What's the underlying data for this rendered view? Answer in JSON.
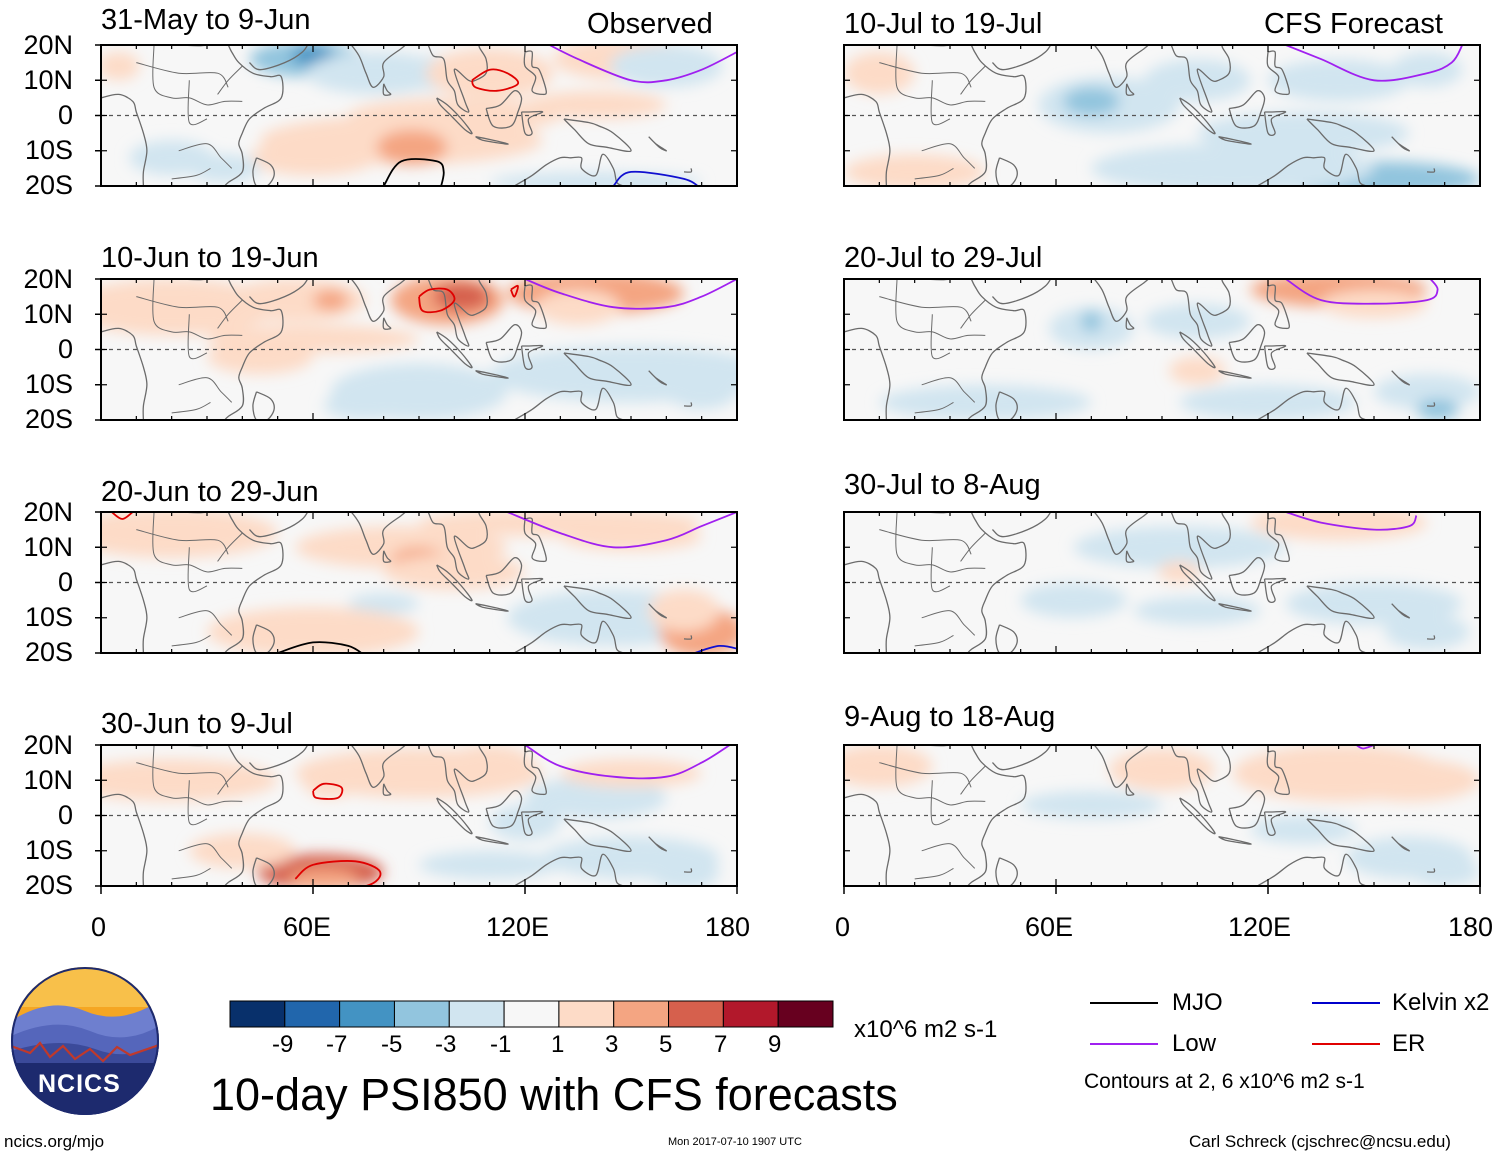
{
  "panels": [
    {
      "period": "31-May to 9-Jun",
      "tag": "Observed",
      "mode": "observed"
    },
    {
      "period": "10-Jun to 19-Jun",
      "tag": "",
      "mode": "observed"
    },
    {
      "period": "20-Jun to 29-Jun",
      "tag": "",
      "mode": "observed"
    },
    {
      "period": "30-Jun to 9-Jul",
      "tag": "",
      "mode": "observed"
    },
    {
      "period": "10-Jul to 19-Jul",
      "tag": "CFS Forecast",
      "mode": "forecast"
    },
    {
      "period": "20-Jul to 29-Jul",
      "tag": "",
      "mode": "forecast"
    },
    {
      "period": "30-Jul to 8-Aug",
      "tag": "",
      "mode": "forecast"
    },
    {
      "period": "9-Aug to 18-Aug",
      "tag": "",
      "mode": "forecast"
    }
  ],
  "lat_labels": [
    "20N",
    "10N",
    "0",
    "10S",
    "20S"
  ],
  "lon_labels": [
    "0",
    "60E",
    "120E",
    "180"
  ],
  "colorbar": {
    "colors": [
      "#08306b",
      "#2166ac",
      "#4393c3",
      "#92c5de",
      "#d1e5f0",
      "#f7f7f7",
      "#fddbc7",
      "#f4a582",
      "#d6604d",
      "#b2182b",
      "#67001f"
    ],
    "labels": [
      "-9",
      "-7",
      "-5",
      "-3",
      "-1",
      "1",
      "3",
      "5",
      "7",
      "9"
    ],
    "units": "x10^6 m2 s-1"
  },
  "title": "10-day PSI850 with CFS forecasts",
  "legend": {
    "items": [
      {
        "label": "MJO",
        "color": "#000000"
      },
      {
        "label": "Kelvin x2",
        "color": "#0000cc"
      },
      {
        "label": "Low",
        "color": "#a020f0"
      },
      {
        "label": "ER",
        "color": "#e00000"
      }
    ],
    "contours_note": "Contours at 2, 6 x10^6 m2 s-1"
  },
  "logo": {
    "text": "NCICS",
    "colors": {
      "sky": "#f5a623",
      "mountains": "#3b4a9a",
      "ring": "#1d2a6e"
    }
  },
  "footer": {
    "url": "ncics.org/mjo",
    "timestamp": "Mon 2017-07-10 1907 UTC",
    "credit": "Carl Schreck (cjschrec@ncsu.edu)"
  },
  "colors": {
    "equator": "#555555",
    "coast": "#6b6b6b",
    "frame": "#000000"
  }
}
